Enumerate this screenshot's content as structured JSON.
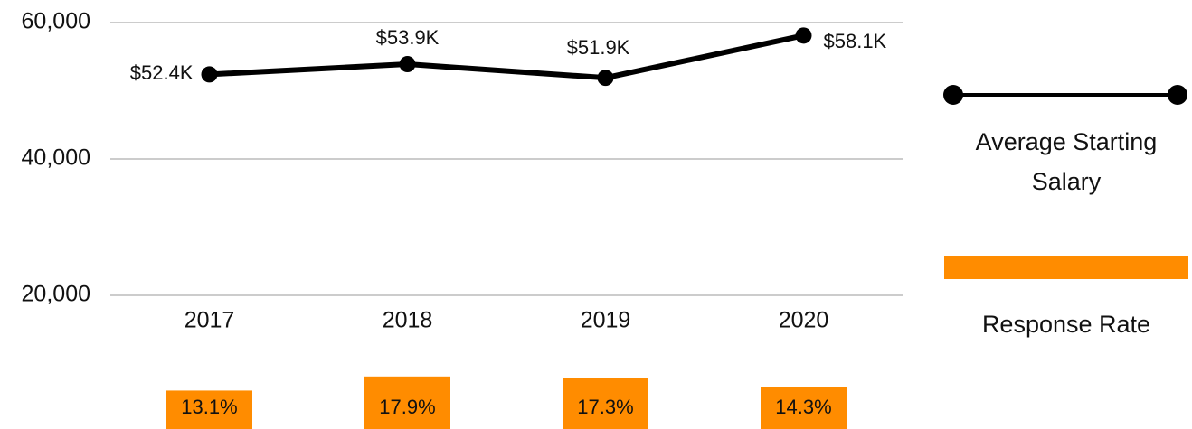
{
  "chart_data": {
    "type": "line",
    "categories": [
      "2017",
      "2018",
      "2019",
      "2020"
    ],
    "series": [
      {
        "name": "Average Starting Salary",
        "type": "line",
        "color": "#000000",
        "values": [
          52400,
          53900,
          51900,
          58100
        ],
        "value_labels": [
          "$52.4K",
          "$53.9K",
          "$51.9K",
          "$58.1K"
        ]
      },
      {
        "name": "Response Rate",
        "type": "bar",
        "color": "#ff8c00",
        "values": [
          13.1,
          17.9,
          17.3,
          14.3
        ],
        "value_labels": [
          "13.1%",
          "17.9%",
          "17.3%",
          "14.3%"
        ]
      }
    ],
    "ylim": [
      20000,
      60000
    ],
    "yticks": [
      {
        "value": 20000,
        "label": "20,000"
      },
      {
        "value": 40000,
        "label": "40,000"
      },
      {
        "value": 60000,
        "label": "60,000"
      }
    ],
    "grid": true
  }
}
